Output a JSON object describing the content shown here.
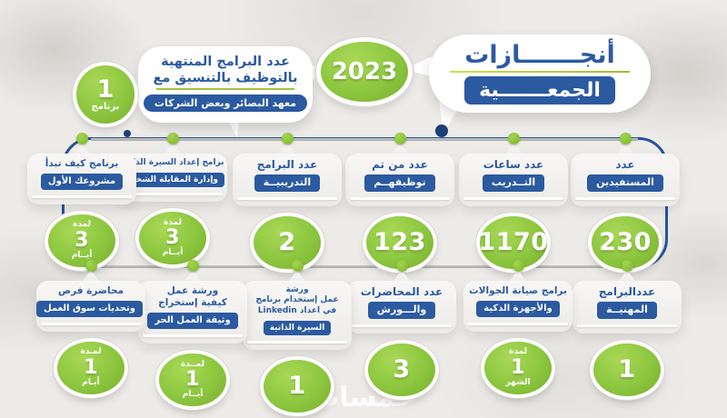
{
  "title": {
    "line1": "أنجـــــــازات",
    "line2": "الجمعـــــــية"
  },
  "year": "2023",
  "intro": {
    "line1": "عدد البرامج المنتهية",
    "line2": "بالتوظيف بالتنسيق مع",
    "pill": "معهد البصائر وبعض الشركات",
    "badge_value": "1",
    "badge_label": "برنامج"
  },
  "top_row": [
    {
      "line1": "عدد",
      "pill": "المستفيدين",
      "value": "230"
    },
    {
      "line1": "عدد ساعات",
      "pill": "التــدريب",
      "value": "1170"
    },
    {
      "line1": "عدد من تم",
      "pill": "توظيفهــم",
      "value": "123"
    },
    {
      "line1": "عدد البرامج",
      "pill": "التدريبيــة",
      "value": "2"
    },
    {
      "line1": "برامج إعداد السيرة الذاتية",
      "pill": "وإدارة المقابلة الشخصية",
      "value": "3",
      "value_top": "لمدة",
      "value_bottom": "أيــام"
    },
    {
      "line1": "برنامج كيف تبدأ",
      "pill": "مشروعك الأول",
      "value": "3",
      "value_top": "لمدة",
      "value_bottom": "أيــام"
    }
  ],
  "bottom_row": [
    {
      "line1": "عددالبرامج",
      "pill": "المهنيــة",
      "value": "1"
    },
    {
      "line1": "برامج صيانة الجوالات",
      "pill": "والأجهزة الذكية",
      "value": "1",
      "value_top": "لمدة",
      "value_bottom": "الشهر"
    },
    {
      "line1": "عدد المحاضرات",
      "pill": "والـــورش",
      "value": "3"
    },
    {
      "line1": "ورشة",
      "line2": "عمل إستخدام برنامج",
      "line3": "في اعداد Linkedin",
      "pill": "السيرة الذاتية",
      "value": "1"
    },
    {
      "line1": "ورشة عمل",
      "line2": "كيفية إستخراج",
      "pill": "وثيقة العمل الحر",
      "value": "1",
      "value_top": "لمــدة",
      "value_bottom": "أيــام"
    },
    {
      "line1": "محاضرة فرص",
      "pill": "وتحديات سوق العمل",
      "value": "1",
      "value_top": "لمـدة",
      "value_bottom": "أيـام"
    }
  ],
  "watermark": "خمسات",
  "colors": {
    "blue": "#2b5aa0",
    "frame_blue": "#24549c",
    "green": "#8cc63f",
    "underline_green": "#a6c23a",
    "background": "#edebe8"
  }
}
